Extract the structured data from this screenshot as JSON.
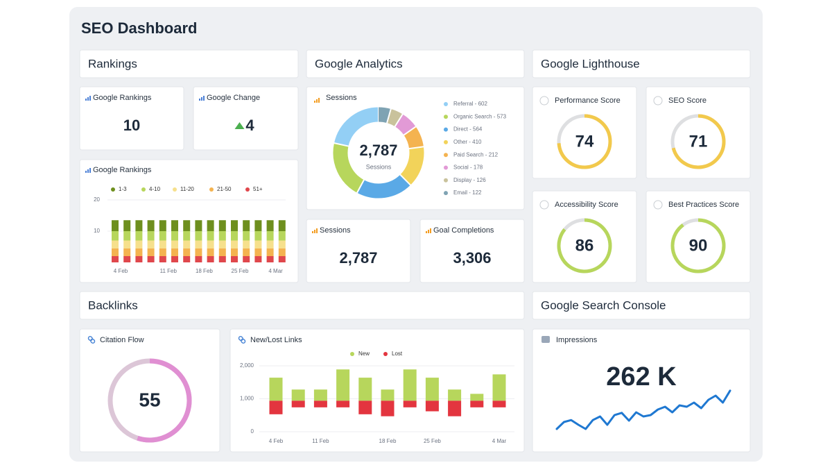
{
  "header": {
    "title": "SEO Dashboard"
  },
  "sections": [
    "Rankings",
    "Google Analytics",
    "Google Lighthouse",
    "Backlinks",
    "Google Search Console"
  ],
  "kpis": [
    {
      "title": "Google Rankings",
      "value": "10"
    },
    {
      "title": "Google Change",
      "value": "4"
    },
    {
      "title": "Sessions",
      "value": "2,787"
    },
    {
      "title": "Goal Completions",
      "value": "3,306"
    }
  ],
  "score_range": [
    0,
    100
  ],
  "gauges": [
    {
      "title": "Performance Score",
      "value": 74,
      "color": "#f2c94c"
    },
    {
      "title": "SEO Score",
      "value": 71,
      "color": "#f2c94c"
    },
    {
      "title": "Accessibility Score",
      "value": 86,
      "color": "#b7d65c"
    },
    {
      "title": "Best Practices Score",
      "value": 90,
      "color": "#b7d65c"
    },
    {
      "title": "Citation Flow",
      "value": 55,
      "color": "#e08fd2"
    }
  ],
  "chart_data": [
    {
      "type": "bar",
      "stacked": true,
      "title": "Google Rankings",
      "categories": [
        "4 Feb",
        null,
        null,
        null,
        "11 Feb",
        null,
        null,
        "18 Feb",
        null,
        null,
        "25 Feb",
        null,
        null,
        "4 Mar",
        null
      ],
      "series": [
        {
          "name": "1-3",
          "color": "#6e8f1e",
          "values": [
            3.5,
            3.5,
            3.5,
            3.5,
            3.5,
            3.5,
            3.5,
            3.5,
            3.5,
            3.5,
            3.5,
            3.5,
            3.5,
            3.5,
            3.5
          ]
        },
        {
          "name": "4-10",
          "color": "#b7d65c",
          "values": [
            3,
            3,
            3,
            3,
            3,
            3,
            3,
            3,
            3,
            3,
            3,
            3,
            3,
            3,
            3
          ]
        },
        {
          "name": "11-20",
          "color": "#f6e08c",
          "values": [
            2.5,
            2.5,
            2.5,
            2.5,
            2.5,
            2.5,
            2.5,
            2.5,
            2.5,
            2.5,
            2.5,
            2.5,
            2.5,
            2.5,
            2.5
          ]
        },
        {
          "name": "21-50",
          "color": "#f4b350",
          "values": [
            2.5,
            2.5,
            2.5,
            2.5,
            2.5,
            2.5,
            2.5,
            2.5,
            2.5,
            2.5,
            2.5,
            2.5,
            2.5,
            2.5,
            2.5
          ]
        },
        {
          "name": "51+",
          "color": "#e0474c",
          "values": [
            2,
            2,
            2,
            2,
            2,
            2,
            2,
            2,
            2,
            2,
            2,
            2,
            2,
            2,
            2
          ]
        }
      ],
      "ylim": [
        0,
        20
      ],
      "yticks": [
        10,
        20
      ],
      "grid": true
    },
    {
      "type": "donut",
      "title": "Sessions",
      "categories": [
        "Referral - 602",
        "Organic Search - 573",
        "Direct - 564",
        "Other - 410",
        "Paid Search - 212",
        "Social - 178",
        "Display - 126",
        "Email - 122"
      ],
      "values": [
        602,
        573,
        564,
        410,
        212,
        178,
        126,
        122
      ],
      "colors": [
        "#93cff5",
        "#b7d65c",
        "#5aa9e6",
        "#f2d35a",
        "#f4b350",
        "#e29ad6",
        "#c9c29c",
        "#7fa3b3"
      ],
      "center_label": "2,787",
      "center_caption": "Sessions"
    },
    {
      "type": "floating-bar",
      "title": "New/Lost Links",
      "categories": [
        "4 Feb",
        null,
        "11 Feb",
        null,
        null,
        "18 Feb",
        null,
        "25 Feb",
        null,
        null,
        "4 Mar"
      ],
      "series": [
        {
          "name": "New",
          "color": "#b7d65c",
          "values": [
            [
              940,
              1640
            ],
            [
              940,
              1280
            ],
            [
              940,
              1280
            ],
            [
              940,
              1890
            ],
            [
              940,
              1640
            ],
            [
              940,
              1280
            ],
            [
              940,
              1890
            ],
            [
              940,
              1640
            ],
            [
              940,
              1280
            ],
            [
              940,
              1150
            ],
            [
              940,
              1740
            ]
          ]
        },
        {
          "name": "Lost",
          "color": "#e3353f",
          "values": [
            [
              530,
              940
            ],
            [
              740,
              940
            ],
            [
              740,
              940
            ],
            [
              740,
              940
            ],
            [
              530,
              940
            ],
            [
              470,
              940
            ],
            [
              740,
              940
            ],
            [
              620,
              940
            ],
            [
              470,
              940
            ],
            [
              740,
              940
            ],
            [
              740,
              940
            ]
          ]
        }
      ],
      "ylim": [
        0,
        2200
      ],
      "yticks": [
        0,
        {
          "value": 1000,
          "label": "1,000"
        },
        {
          "value": 2000,
          "label": "2,000"
        }
      ],
      "grid": true
    },
    {
      "type": "line",
      "title": "Impressions",
      "value_label": "262 K",
      "color": "#1f78d1",
      "values": [
        15,
        27.5,
        31,
        22.5,
        15,
        31,
        37.5,
        22.5,
        40,
        44,
        30,
        45,
        37.5,
        40,
        50,
        55,
        45,
        57.5,
        55,
        62.5,
        52.5,
        67.5,
        75,
        62.5,
        84
      ],
      "ylim": [
        0,
        100
      ]
    }
  ]
}
